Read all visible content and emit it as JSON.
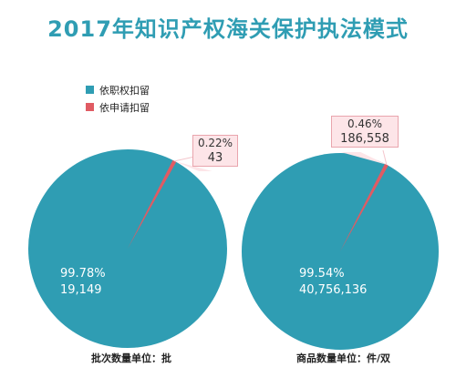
{
  "title": "2017年知识产权海关保护执法模式",
  "legend": [
    {
      "label": "依职权扣留",
      "color": "#2f9db3"
    },
    {
      "label": "依申请扣留",
      "color": "#e05b63"
    }
  ],
  "chart_data": [
    {
      "type": "pie",
      "unit_label": "批次数量单位：批",
      "slices": [
        {
          "name": "依职权扣留",
          "percent": 99.78,
          "percent_text": "99.78%",
          "value": 19149,
          "value_text": "19,149",
          "color": "#2f9db3"
        },
        {
          "name": "依申请扣留",
          "percent": 0.22,
          "percent_text": "0.22%",
          "value": 43,
          "value_text": "43",
          "color": "#e05b63"
        }
      ]
    },
    {
      "type": "pie",
      "unit_label": "商品数量单位：件/双",
      "slices": [
        {
          "name": "依职权扣留",
          "percent": 99.54,
          "percent_text": "99.54%",
          "value": 40756136,
          "value_text": "40,756,136",
          "color": "#2f9db3"
        },
        {
          "name": "依申请扣留",
          "percent": 0.46,
          "percent_text": "0.46%",
          "value": 186558,
          "value_text": "186,558",
          "color": "#e05b63"
        }
      ]
    }
  ]
}
